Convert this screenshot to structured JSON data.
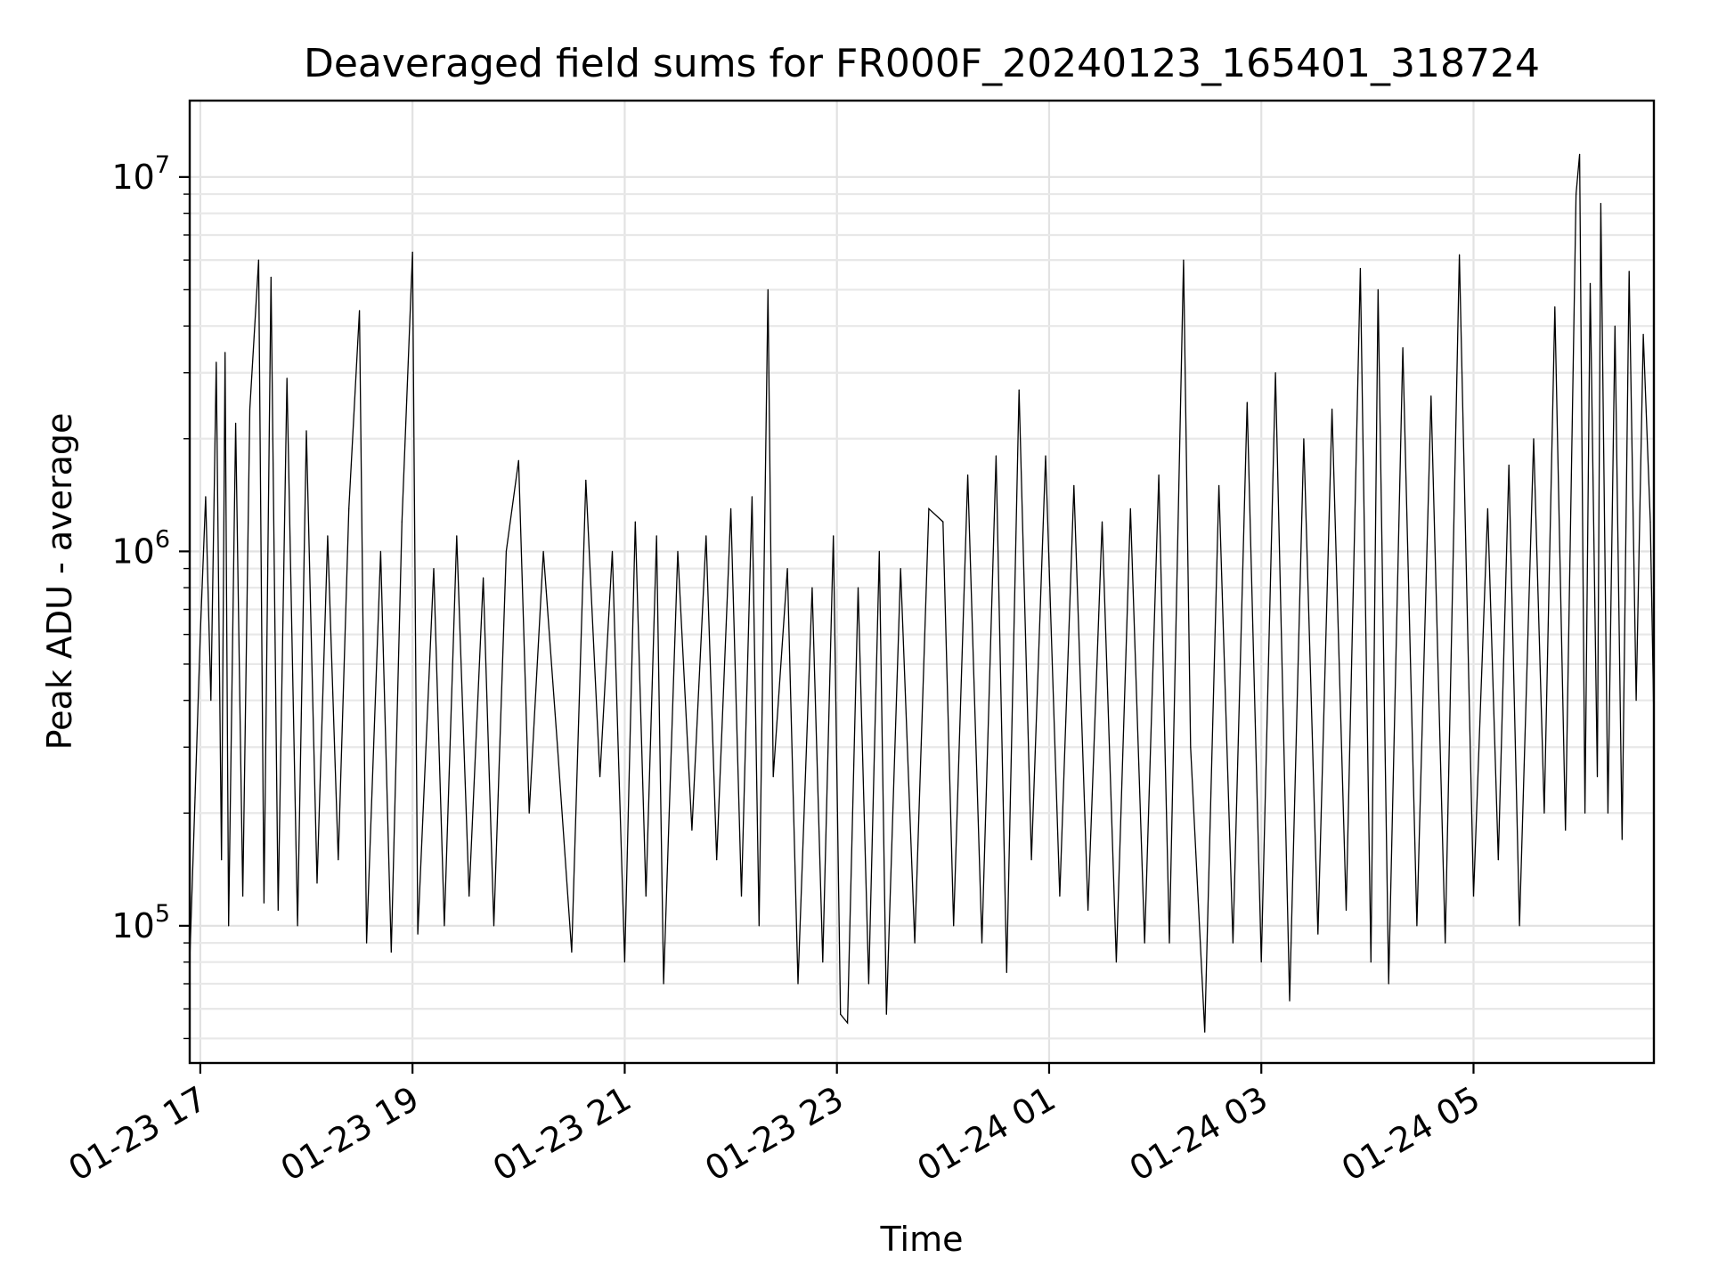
{
  "chart_data": {
    "type": "line",
    "title": "Deaveraged field sums for FR000F_20240123_165401_318724",
    "xlabel": "Time",
    "ylabel": "Peak ADU - average",
    "yscale": "log",
    "ylim": [
      43000,
      16000000
    ],
    "xlim": [
      "2024-01-23 16:54",
      "2024-01-24 06:42"
    ],
    "grid": true,
    "line_color": "#000000",
    "x_ticks": [
      {
        "t": "2024-01-23 17:00",
        "label": "01-23 17"
      },
      {
        "t": "2024-01-23 19:00",
        "label": "01-23 19"
      },
      {
        "t": "2024-01-23 21:00",
        "label": "01-23 21"
      },
      {
        "t": "2024-01-23 23:00",
        "label": "01-23 23"
      },
      {
        "t": "2024-01-24 01:00",
        "label": "01-24 01"
      },
      {
        "t": "2024-01-24 03:00",
        "label": "01-24 03"
      },
      {
        "t": "2024-01-24 05:00",
        "label": "01-24 05"
      }
    ],
    "y_ticks": [
      {
        "value": 100000,
        "base": "10",
        "exp": "5"
      },
      {
        "value": 1000000,
        "base": "10",
        "exp": "6"
      },
      {
        "value": 10000000,
        "base": "10",
        "exp": "7"
      }
    ],
    "series": [
      {
        "values": [
          [
            "2024-01-23 16:54",
            80000
          ],
          [
            "2024-01-23 16:57",
            220000
          ],
          [
            "2024-01-23 17:00",
            600000
          ],
          [
            "2024-01-23 17:03",
            1400000
          ],
          [
            "2024-01-23 17:06",
            400000
          ],
          [
            "2024-01-23 17:09",
            3200000
          ],
          [
            "2024-01-23 17:12",
            150000
          ],
          [
            "2024-01-23 17:14",
            3400000
          ],
          [
            "2024-01-23 17:16",
            100000
          ],
          [
            "2024-01-23 17:20",
            2200000
          ],
          [
            "2024-01-23 17:24",
            120000
          ],
          [
            "2024-01-23 17:28",
            2400000
          ],
          [
            "2024-01-23 17:33",
            6000000
          ],
          [
            "2024-01-23 17:36",
            115000
          ],
          [
            "2024-01-23 17:40",
            5400000
          ],
          [
            "2024-01-23 17:44",
            110000
          ],
          [
            "2024-01-23 17:49",
            2900000
          ],
          [
            "2024-01-23 17:55",
            100000
          ],
          [
            "2024-01-23 18:00",
            2100000
          ],
          [
            "2024-01-23 18:06",
            130000
          ],
          [
            "2024-01-23 18:12",
            1100000
          ],
          [
            "2024-01-23 18:18",
            150000
          ],
          [
            "2024-01-23 18:24",
            1300000
          ],
          [
            "2024-01-23 18:30",
            4400000
          ],
          [
            "2024-01-23 18:34",
            90000
          ],
          [
            "2024-01-23 18:42",
            1000000
          ],
          [
            "2024-01-23 18:48",
            85000
          ],
          [
            "2024-01-23 18:54",
            1200000
          ],
          [
            "2024-01-23 19:00",
            6300000
          ],
          [
            "2024-01-23 19:03",
            95000
          ],
          [
            "2024-01-23 19:12",
            900000
          ],
          [
            "2024-01-23 19:18",
            100000
          ],
          [
            "2024-01-23 19:25",
            1100000
          ],
          [
            "2024-01-23 19:32",
            120000
          ],
          [
            "2024-01-23 19:40",
            850000
          ],
          [
            "2024-01-23 19:46",
            100000
          ],
          [
            "2024-01-23 19:53",
            1000000
          ],
          [
            "2024-01-23 20:00",
            1750000
          ],
          [
            "2024-01-23 20:06",
            200000
          ],
          [
            "2024-01-23 20:14",
            1000000
          ],
          [
            "2024-01-23 20:22",
            300000
          ],
          [
            "2024-01-23 20:30",
            85000
          ],
          [
            "2024-01-23 20:38",
            1550000
          ],
          [
            "2024-01-23 20:46",
            250000
          ],
          [
            "2024-01-23 20:53",
            1000000
          ],
          [
            "2024-01-23 21:00",
            80000
          ],
          [
            "2024-01-23 21:06",
            1200000
          ],
          [
            "2024-01-23 21:12",
            120000
          ],
          [
            "2024-01-23 21:18",
            1100000
          ],
          [
            "2024-01-23 21:22",
            70000
          ],
          [
            "2024-01-23 21:30",
            1000000
          ],
          [
            "2024-01-23 21:38",
            180000
          ],
          [
            "2024-01-23 21:46",
            1100000
          ],
          [
            "2024-01-23 21:52",
            150000
          ],
          [
            "2024-01-23 22:00",
            1300000
          ],
          [
            "2024-01-23 22:06",
            120000
          ],
          [
            "2024-01-23 22:12",
            1400000
          ],
          [
            "2024-01-23 22:16",
            100000
          ],
          [
            "2024-01-23 22:21",
            5000000
          ],
          [
            "2024-01-23 22:24",
            250000
          ],
          [
            "2024-01-23 22:32",
            900000
          ],
          [
            "2024-01-23 22:38",
            70000
          ],
          [
            "2024-01-23 22:46",
            800000
          ],
          [
            "2024-01-23 22:52",
            80000
          ],
          [
            "2024-01-23 22:58",
            1100000
          ],
          [
            "2024-01-23 23:02",
            58000
          ],
          [
            "2024-01-23 23:06",
            55000
          ],
          [
            "2024-01-23 23:12",
            800000
          ],
          [
            "2024-01-23 23:18",
            70000
          ],
          [
            "2024-01-23 23:24",
            1000000
          ],
          [
            "2024-01-23 23:28",
            58000
          ],
          [
            "2024-01-23 23:36",
            900000
          ],
          [
            "2024-01-23 23:44",
            90000
          ],
          [
            "2024-01-23 23:52",
            1300000
          ],
          [
            "2024-01-24 00:00",
            1200000
          ],
          [
            "2024-01-24 00:06",
            100000
          ],
          [
            "2024-01-24 00:14",
            1600000
          ],
          [
            "2024-01-24 00:22",
            90000
          ],
          [
            "2024-01-24 00:30",
            1800000
          ],
          [
            "2024-01-24 00:36",
            75000
          ],
          [
            "2024-01-24 00:43",
            2700000
          ],
          [
            "2024-01-24 00:50",
            150000
          ],
          [
            "2024-01-24 00:58",
            1800000
          ],
          [
            "2024-01-24 01:06",
            120000
          ],
          [
            "2024-01-24 01:14",
            1500000
          ],
          [
            "2024-01-24 01:22",
            110000
          ],
          [
            "2024-01-24 01:30",
            1200000
          ],
          [
            "2024-01-24 01:38",
            80000
          ],
          [
            "2024-01-24 01:46",
            1300000
          ],
          [
            "2024-01-24 01:54",
            90000
          ],
          [
            "2024-01-24 02:02",
            1600000
          ],
          [
            "2024-01-24 02:08",
            90000
          ],
          [
            "2024-01-24 02:16",
            6000000
          ],
          [
            "2024-01-24 02:20",
            300000
          ],
          [
            "2024-01-24 02:28",
            52000
          ],
          [
            "2024-01-24 02:36",
            1500000
          ],
          [
            "2024-01-24 02:44",
            90000
          ],
          [
            "2024-01-24 02:52",
            2500000
          ],
          [
            "2024-01-24 03:00",
            80000
          ],
          [
            "2024-01-24 03:08",
            3000000
          ],
          [
            "2024-01-24 03:16",
            63000
          ],
          [
            "2024-01-24 03:24",
            2000000
          ],
          [
            "2024-01-24 03:32",
            95000
          ],
          [
            "2024-01-24 03:40",
            2400000
          ],
          [
            "2024-01-24 03:48",
            110000
          ],
          [
            "2024-01-24 03:56",
            5700000
          ],
          [
            "2024-01-24 04:02",
            80000
          ],
          [
            "2024-01-24 04:06",
            5000000
          ],
          [
            "2024-01-24 04:12",
            70000
          ],
          [
            "2024-01-24 04:20",
            3500000
          ],
          [
            "2024-01-24 04:28",
            100000
          ],
          [
            "2024-01-24 04:36",
            2600000
          ],
          [
            "2024-01-24 04:44",
            90000
          ],
          [
            "2024-01-24 04:52",
            6200000
          ],
          [
            "2024-01-24 05:00",
            120000
          ],
          [
            "2024-01-24 05:08",
            1300000
          ],
          [
            "2024-01-24 05:14",
            150000
          ],
          [
            "2024-01-24 05:20",
            1700000
          ],
          [
            "2024-01-24 05:26",
            100000
          ],
          [
            "2024-01-24 05:34",
            2000000
          ],
          [
            "2024-01-24 05:40",
            200000
          ],
          [
            "2024-01-24 05:46",
            4500000
          ],
          [
            "2024-01-24 05:52",
            180000
          ],
          [
            "2024-01-24 05:58",
            9000000
          ],
          [
            "2024-01-24 06:00",
            11500000
          ],
          [
            "2024-01-24 06:03",
            200000
          ],
          [
            "2024-01-24 06:06",
            5200000
          ],
          [
            "2024-01-24 06:10",
            250000
          ],
          [
            "2024-01-24 06:12",
            8500000
          ],
          [
            "2024-01-24 06:16",
            200000
          ],
          [
            "2024-01-24 06:20",
            4000000
          ],
          [
            "2024-01-24 06:24",
            170000
          ],
          [
            "2024-01-24 06:28",
            5600000
          ],
          [
            "2024-01-24 06:32",
            400000
          ],
          [
            "2024-01-24 06:36",
            3800000
          ],
          [
            "2024-01-24 06:40",
            1200000
          ],
          [
            "2024-01-24 06:42",
            350000
          ]
        ]
      }
    ]
  }
}
